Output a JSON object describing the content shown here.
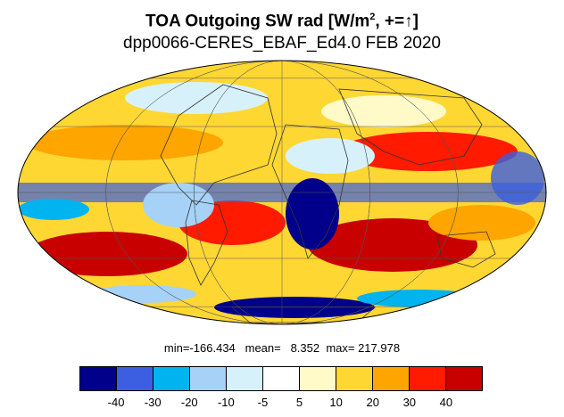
{
  "title": {
    "main_prefix": "TOA Outgoing SW rad [W/m",
    "superscript": "2",
    "main_suffix": ", +=↑]",
    "subtitle": "dpp0066-CERES_EBAF_Ed4.0 FEB 2020"
  },
  "stats": {
    "text": "min=-166.434   mean=   8.352  max= 217.978",
    "min": -166.434,
    "mean": 8.352,
    "max": 217.978
  },
  "colorbar": {
    "colors": [
      "#00008b",
      "#3b5fe0",
      "#00b4f0",
      "#a6d2f7",
      "#d7f1fb",
      "#ffffff",
      "#fffac8",
      "#ffd733",
      "#ffa500",
      "#ff1a00",
      "#c80000"
    ],
    "tick_labels": [
      "-40",
      "-30",
      "-20",
      "-10",
      "-5",
      "5",
      "10",
      "20",
      "30",
      "40"
    ]
  },
  "map": {
    "projection": "Mollweide",
    "graticule": true,
    "coastlines": true
  }
}
